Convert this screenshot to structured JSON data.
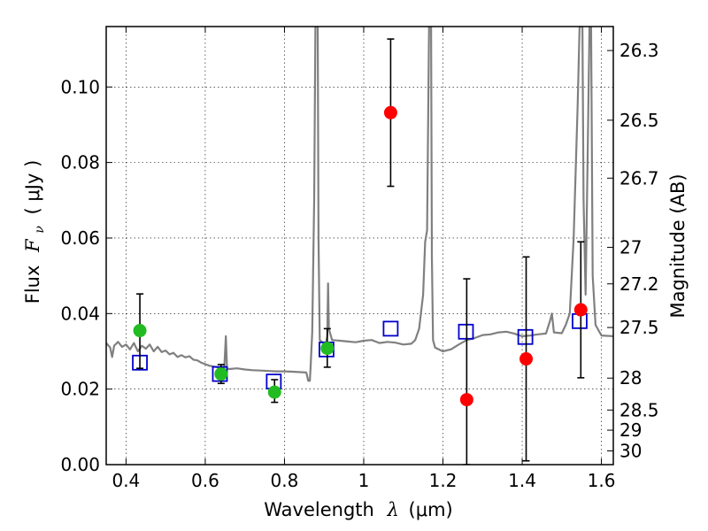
{
  "chart_data": {
    "type": "scatter",
    "xlabel": "Wavelength",
    "xlabel_math": "λ",
    "xlabel_unit": "(μm)",
    "ylabel": "Flux",
    "ylabel_math": "F",
    "ylabel_sub": "ν",
    "ylabel_unit": "( μJy )",
    "y2label": "Magnitude (AB)",
    "xlim": [
      0.35,
      1.63
    ],
    "ylim": [
      0.0,
      0.116
    ],
    "grid": true,
    "xticks": [
      {
        "v": 0.4,
        "label": "0.4"
      },
      {
        "v": 0.6,
        "label": "0.6"
      },
      {
        "v": 0.8,
        "label": "0.8"
      },
      {
        "v": 1.0,
        "label": "1"
      },
      {
        "v": 1.2,
        "label": "1.2"
      },
      {
        "v": 1.4,
        "label": "1.4"
      },
      {
        "v": 1.6,
        "label": "1.6"
      }
    ],
    "yticks": [
      {
        "v": 0.0,
        "label": "0.00"
      },
      {
        "v": 0.02,
        "label": "0.02"
      },
      {
        "v": 0.04,
        "label": "0.04"
      },
      {
        "v": 0.06,
        "label": "0.06"
      },
      {
        "v": 0.08,
        "label": "0.08"
      },
      {
        "v": 0.1,
        "label": "0.10"
      }
    ],
    "y2ticks": [
      {
        "mag": 26.3,
        "label": "26.3"
      },
      {
        "mag": 26.5,
        "label": "26.5"
      },
      {
        "mag": 26.7,
        "label": "26.7"
      },
      {
        "mag": 27.0,
        "label": "27"
      },
      {
        "mag": 27.2,
        "label": "27.2"
      },
      {
        "mag": 27.5,
        "label": "27.5"
      },
      {
        "mag": 28.0,
        "label": "28"
      },
      {
        "mag": 28.5,
        "label": "28.5"
      },
      {
        "mag": 29.0,
        "label": "29"
      },
      {
        "mag": 30.0,
        "label": "30"
      }
    ],
    "series": [
      {
        "kind": "line",
        "color": "#808080",
        "points": [
          [
            0.35,
            0.0322
          ],
          [
            0.36,
            0.031
          ],
          [
            0.365,
            0.0285
          ],
          [
            0.37,
            0.0315
          ],
          [
            0.38,
            0.0325
          ],
          [
            0.39,
            0.0312
          ],
          [
            0.4,
            0.0318
          ],
          [
            0.41,
            0.0305
          ],
          [
            0.42,
            0.0322
          ],
          [
            0.43,
            0.03
          ],
          [
            0.44,
            0.0315
          ],
          [
            0.45,
            0.0307
          ],
          [
            0.46,
            0.0318
          ],
          [
            0.47,
            0.03
          ],
          [
            0.48,
            0.0312
          ],
          [
            0.49,
            0.0298
          ],
          [
            0.5,
            0.0302
          ],
          [
            0.51,
            0.0292
          ],
          [
            0.52,
            0.0296
          ],
          [
            0.53,
            0.0285
          ],
          [
            0.54,
            0.029
          ],
          [
            0.55,
            0.0284
          ],
          [
            0.56,
            0.0287
          ],
          [
            0.57,
            0.0278
          ],
          [
            0.58,
            0.0276
          ],
          [
            0.59,
            0.027
          ],
          [
            0.6,
            0.0266
          ],
          [
            0.61,
            0.0262
          ],
          [
            0.62,
            0.026
          ],
          [
            0.63,
            0.0258
          ],
          [
            0.64,
            0.0252
          ],
          [
            0.648,
            0.0255
          ],
          [
            0.652,
            0.034
          ],
          [
            0.655,
            0.0255
          ],
          [
            0.66,
            0.0253
          ],
          [
            0.68,
            0.0255
          ],
          [
            0.7,
            0.0252
          ],
          [
            0.72,
            0.025
          ],
          [
            0.74,
            0.0249
          ],
          [
            0.76,
            0.0248
          ],
          [
            0.78,
            0.0247
          ],
          [
            0.8,
            0.0247
          ],
          [
            0.82,
            0.0246
          ],
          [
            0.84,
            0.0245
          ],
          [
            0.855,
            0.0244
          ],
          [
            0.86,
            0.0222
          ],
          [
            0.864,
            0.0222
          ],
          [
            0.866,
            0.026
          ],
          [
            0.87,
            0.035
          ],
          [
            0.875,
            0.07
          ],
          [
            0.878,
            0.116
          ],
          [
            0.884,
            0.116
          ],
          [
            0.886,
            0.06
          ],
          [
            0.889,
            0.033
          ],
          [
            0.9,
            0.032
          ],
          [
            0.905,
            0.0325
          ],
          [
            0.908,
            0.034
          ],
          [
            0.91,
            0.048
          ],
          [
            0.912,
            0.036
          ],
          [
            0.92,
            0.033
          ],
          [
            0.94,
            0.0328
          ],
          [
            0.96,
            0.0326
          ],
          [
            0.98,
            0.0324
          ],
          [
            1.0,
            0.0328
          ],
          [
            1.02,
            0.033
          ],
          [
            1.04,
            0.0322
          ],
          [
            1.06,
            0.0325
          ],
          [
            1.08,
            0.0323
          ],
          [
            1.1,
            0.0318
          ],
          [
            1.12,
            0.032
          ],
          [
            1.13,
            0.033
          ],
          [
            1.14,
            0.036
          ],
          [
            1.15,
            0.045
          ],
          [
            1.155,
            0.059
          ],
          [
            1.16,
            0.062
          ],
          [
            1.165,
            0.116
          ],
          [
            1.17,
            0.116
          ],
          [
            1.172,
            0.055
          ],
          [
            1.175,
            0.033
          ],
          [
            1.18,
            0.031
          ],
          [
            1.2,
            0.03
          ],
          [
            1.22,
            0.0305
          ],
          [
            1.24,
            0.0318
          ],
          [
            1.26,
            0.033
          ],
          [
            1.28,
            0.0335
          ],
          [
            1.3,
            0.0343
          ],
          [
            1.32,
            0.0345
          ],
          [
            1.34,
            0.035
          ],
          [
            1.36,
            0.0352
          ],
          [
            1.38,
            0.0347
          ],
          [
            1.4,
            0.034
          ],
          [
            1.42,
            0.0342
          ],
          [
            1.44,
            0.0345
          ],
          [
            1.46,
            0.0347
          ],
          [
            1.47,
            0.038
          ],
          [
            1.475,
            0.04
          ],
          [
            1.48,
            0.035
          ],
          [
            1.5,
            0.0348
          ],
          [
            1.51,
            0.037
          ],
          [
            1.52,
            0.04
          ],
          [
            1.53,
            0.06
          ],
          [
            1.54,
            0.095
          ],
          [
            1.545,
            0.116
          ],
          [
            1.552,
            0.116
          ],
          [
            1.555,
            0.07
          ],
          [
            1.56,
            0.045
          ],
          [
            1.565,
            0.08
          ],
          [
            1.57,
            0.116
          ],
          [
            1.574,
            0.116
          ],
          [
            1.578,
            0.05
          ],
          [
            1.585,
            0.037
          ],
          [
            1.6,
            0.0342
          ],
          [
            1.63,
            0.034
          ]
        ]
      },
      {
        "kind": "open-square",
        "color": "#0000cc",
        "points": [
          [
            0.435,
            0.027
          ],
          [
            0.637,
            0.024
          ],
          [
            0.773,
            0.022
          ],
          [
            0.906,
            0.0305
          ],
          [
            1.068,
            0.036
          ],
          [
            1.258,
            0.0352
          ],
          [
            1.408,
            0.0338
          ],
          [
            1.545,
            0.038
          ]
        ]
      },
      {
        "kind": "filled-circle",
        "color": "#22bb22",
        "points": [
          {
            "x": 0.435,
            "y": 0.0355,
            "lo": 0.0255,
            "hi": 0.0452
          },
          {
            "x": 0.64,
            "y": 0.024,
            "lo": 0.0215,
            "hi": 0.0265
          },
          {
            "x": 0.775,
            "y": 0.0192,
            "lo": 0.0165,
            "hi": 0.0225
          },
          {
            "x": 0.908,
            "y": 0.0308,
            "lo": 0.0258,
            "hi": 0.036
          }
        ]
      },
      {
        "kind": "filled-circle",
        "color": "#ff0000",
        "points": [
          {
            "x": 1.068,
            "y": 0.0932,
            "lo": 0.0737,
            "hi": 0.1127
          },
          {
            "x": 1.26,
            "y": 0.0172,
            "lo": 0.0,
            "hi": 0.0492
          },
          {
            "x": 1.41,
            "y": 0.028,
            "lo": 0.001,
            "hi": 0.055
          },
          {
            "x": 1.548,
            "y": 0.041,
            "lo": 0.023,
            "hi": 0.059
          }
        ]
      }
    ]
  }
}
